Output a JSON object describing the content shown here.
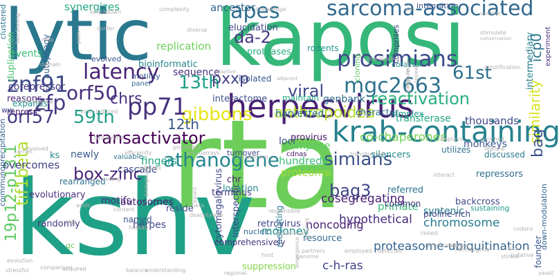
{
  "words": [
    {
      "text": "rta",
      "color": "#6cce59"
    },
    {
      "text": "kshv",
      "color": "#1fa187"
    },
    {
      "text": "kaposi",
      "color": "#35b779"
    },
    {
      "text": "lytic",
      "color": "#2a788e"
    },
    {
      "text": "herpesvirus",
      "color": "#482173"
    },
    {
      "text": "krab-containing",
      "color": "#26828e"
    },
    {
      "text": "anthropoidea",
      "color": "#b5de2b"
    },
    {
      "text": "prosimians",
      "color": "#3e4a89"
    },
    {
      "text": "sarcoma-associated",
      "color": "#31688e"
    },
    {
      "text": "gibbons",
      "color": "#e5e419"
    },
    {
      "text": "mgc2663",
      "color": "#2c728e"
    },
    {
      "text": "latency",
      "color": "#482475"
    },
    {
      "text": "pp71",
      "color": "#46337e"
    },
    {
      "text": "59th",
      "color": "#1f9e89"
    },
    {
      "text": "athanogene",
      "color": "#25858e"
    },
    {
      "text": "similarity",
      "color": "#d8e219"
    },
    {
      "text": "simians",
      "color": "#3b528b"
    },
    {
      "text": "13th",
      "color": "#1fa088"
    },
    {
      "text": "12th",
      "color": "#39568c"
    },
    {
      "text": "61st",
      "color": "#2d708e"
    },
    {
      "text": "zfp",
      "color": "#453882"
    },
    {
      "text": "orf57",
      "color": "#433e85"
    },
    {
      "text": "orf50",
      "color": "#472d7b"
    },
    {
      "text": "znf91",
      "color": "#3e4989"
    },
    {
      "text": "transactivator",
      "color": "#440154"
    },
    {
      "text": "box-zinc",
      "color": "#482677"
    },
    {
      "text": "bag3",
      "color": "#3f4788"
    },
    {
      "text": "reactivation",
      "color": "#29af7f"
    },
    {
      "text": "viral",
      "color": "#3f4889"
    },
    {
      "text": "apes",
      "color": "#2e6e8e"
    },
    {
      "text": "pxxp",
      "color": "#424086"
    },
    {
      "text": "da-2",
      "color": "#443983"
    },
    {
      "text": "chrs",
      "color": "#46307e"
    },
    {
      "text": "19p12-p13.1",
      "color": "#5ec962"
    },
    {
      "text": "tif1beta",
      "color": "#addc30"
    },
    {
      "text": "proteasome-ubiquitination",
      "color": "#33638d"
    },
    {
      "text": "cosegregating",
      "color": "#481d6f"
    },
    {
      "text": "hypothetical",
      "color": "#472a7a"
    },
    {
      "text": "chromosome",
      "color": "#287c8e"
    },
    {
      "text": "bag",
      "color": "#3b518b"
    },
    {
      "text": "icp0",
      "color": "#2a768e"
    },
    {
      "text": "primate",
      "color": "#35b779"
    },
    {
      "text": "intermediary",
      "color": "#277f8e"
    },
    {
      "text": "c-h-ras",
      "color": "#414487"
    },
    {
      "text": "moloney",
      "color": "#21908d"
    },
    {
      "text": "synergizes",
      "color": "#22a785"
    },
    {
      "text": "ancestor",
      "color": "#31678e"
    },
    {
      "text": "replication",
      "color": "#6ece58"
    },
    {
      "text": "sequence",
      "color": "#46327e"
    },
    {
      "text": "elucidation",
      "color": "#404688"
    },
    {
      "text": "proteases",
      "color": "#29af7f"
    },
    {
      "text": "duplication",
      "color": "#4ac16d"
    },
    {
      "text": "autophagy",
      "color": "#355f8d"
    },
    {
      "text": "isolated",
      "color": "#39558c"
    },
    {
      "text": "bioinformatic",
      "color": "#25848e"
    },
    {
      "text": "interactome",
      "color": "#3e4c8a"
    },
    {
      "text": "genbank",
      "color": "#2f6c8e"
    },
    {
      "text": "character",
      "color": "#2e6f8e"
    },
    {
      "text": "rodents",
      "color": "#1f968b"
    },
    {
      "text": "cloning",
      "color": "#5ec962"
    },
    {
      "text": "comprises",
      "color": "#443a83"
    },
    {
      "text": "cofactor",
      "color": "#21918c"
    },
    {
      "text": "simplex",
      "color": "#1e9b8a"
    },
    {
      "text": "transferase",
      "color": "#22a884"
    },
    {
      "text": "thousands",
      "color": "#3f4788"
    },
    {
      "text": "co-chaperones",
      "color": "#75d054"
    },
    {
      "text": "monkeys",
      "color": "#3b528b"
    },
    {
      "text": "provirus",
      "color": "#471164"
    },
    {
      "text": "loci",
      "color": "#3c4f8a"
    },
    {
      "text": "compose",
      "color": "#5cc863"
    },
    {
      "text": "hundreds",
      "color": "#3bbb75"
    },
    {
      "text": "proteome",
      "color": "#a2da37"
    },
    {
      "text": "silencers",
      "color": "#238a8d"
    },
    {
      "text": "utilizes",
      "color": "#2c718e"
    },
    {
      "text": "discussed",
      "color": "#297b8e"
    },
    {
      "text": "repressors",
      "color": "#2e6d8e"
    },
    {
      "text": "fingers",
      "color": "#22a785"
    },
    {
      "text": "cascade",
      "color": "#3d4d8a"
    },
    {
      "text": "newly",
      "color": "#38598c"
    },
    {
      "text": "ks",
      "color": "#23888e"
    },
    {
      "text": "overcomes",
      "color": "#424186"
    },
    {
      "text": "rearranged",
      "color": "#2e6e8e"
    },
    {
      "text": "evolutionary",
      "color": "#472f7d"
    },
    {
      "text": "motifs",
      "color": "#46307e"
    },
    {
      "text": "autosomes",
      "color": "#481f70"
    },
    {
      "text": "herpes",
      "color": "#404688"
    },
    {
      "text": "named",
      "color": "#3b528b"
    },
    {
      "text": "randomly",
      "color": "#453781"
    },
    {
      "text": "gc",
      "color": "#6ece58"
    },
    {
      "text": "coimmunoprecipitation",
      "color": "#355e8d"
    },
    {
      "text": "reside",
      "color": "#3d4e8a"
    },
    {
      "text": "chr",
      "color": "#482071"
    },
    {
      "text": "location",
      "color": "#23888e"
    },
    {
      "text": "terminus",
      "color": "#433d84"
    },
    {
      "text": "cytomegalovirus",
      "color": "#3f4788"
    },
    {
      "text": "interspecific",
      "color": "#3e4a89"
    },
    {
      "text": "comprehensively",
      "color": "#46337e"
    },
    {
      "text": "retrovirus",
      "color": "#404588"
    },
    {
      "text": "nucleic",
      "color": "#31668e"
    },
    {
      "text": "noncoding",
      "color": "#481f70"
    },
    {
      "text": "resource",
      "color": "#2f6b8e"
    },
    {
      "text": "referred",
      "color": "#2b748e"
    },
    {
      "text": "syntenic",
      "color": "#27808e"
    },
    {
      "text": "backcross",
      "color": "#3f4889"
    },
    {
      "text": "common",
      "color": "#463480"
    },
    {
      "text": "proline-rich",
      "color": "#414287"
    },
    {
      "text": "suppression",
      "color": "#84d44b"
    },
    {
      "text": "mediating",
      "color": "#297a8e"
    },
    {
      "text": "founder",
      "color": "#39568c"
    },
    {
      "text": "sustaining",
      "color": "#1f9a8a"
    },
    {
      "text": "down-modulation",
      "color": "#33628d"
    },
    {
      "text": "events",
      "color": "#3aba76"
    },
    {
      "text": "corepressor",
      "color": "#453882"
    },
    {
      "text": "reasons",
      "color": "#482576"
    },
    {
      "text": "repress",
      "color": "#481b6d"
    },
    {
      "text": "evolved",
      "color": "#3b528b"
    },
    {
      "text": "motility",
      "color": "#39558c"
    },
    {
      "text": "panel",
      "color": "#31688e"
    },
    {
      "text": "valuable",
      "color": "#2a778e"
    },
    {
      "text": "harvested",
      "color": "#2d708e"
    },
    {
      "text": "maintain",
      "color": "#22a785"
    },
    {
      "text": "cdnas",
      "color": "#481467"
    },
    {
      "text": "turnover",
      "color": "#3e4989"
    },
    {
      "text": "clustered",
      "color": "#2a768e"
    },
    {
      "text": "expands",
      "color": "#21918c"
    },
    {
      "text": "ww",
      "color": "#404688"
    },
    {
      "text": "integration",
      "color": "#3b528b"
    },
    {
      "text": "experiment",
      "color": "#472e7c"
    },
    {
      "text": "knockdown",
      "color": "#b0b0b0"
    },
    {
      "text": "complexity",
      "color": "#b0b0b0"
    },
    {
      "text": "knowledge",
      "color": "#b0b0b0"
    },
    {
      "text": "diverse",
      "color": "#b0b0b0"
    },
    {
      "text": "confer",
      "color": "#b0b0b0"
    },
    {
      "text": "functioning",
      "color": "#b0b0b0"
    },
    {
      "text": "map",
      "color": "#b0b0b0"
    },
    {
      "text": "pairs",
      "color": "#b0b0b0"
    },
    {
      "text": "unclear",
      "color": "#b0b0b0"
    },
    {
      "text": "stimulate",
      "color": "#b0b0b0"
    },
    {
      "text": "conservation",
      "color": "#b0b0b0"
    },
    {
      "text": "amplification",
      "color": "#b0b0b0"
    },
    {
      "text": "dna-binding",
      "color": "#b0b0b0"
    },
    {
      "text": "adjacent",
      "color": "#b0b0b0"
    },
    {
      "text": "adaptive",
      "color": "#b0b0b0"
    },
    {
      "text": "repeat",
      "color": "#b0b0b0"
    },
    {
      "text": "high-level",
      "color": "#b0b0b0"
    },
    {
      "text": "pressure",
      "color": "#b0b0b0"
    },
    {
      "text": "domain",
      "color": "#b0b0b0"
    },
    {
      "text": "interference",
      "color": "#b0b0b0"
    },
    {
      "text": "virus-induced",
      "color": "#b0b0b0"
    },
    {
      "text": "two-hybrid",
      "color": "#b0b0b0"
    },
    {
      "text": "relevant",
      "color": "#b0b0b0"
    },
    {
      "text": "efficiently",
      "color": "#b0b0b0"
    },
    {
      "text": "promoters",
      "color": "#b0b0b0"
    },
    {
      "text": "microarrays",
      "color": "#b0b0b0"
    },
    {
      "text": "n-terminal",
      "color": "#b0b0b0"
    },
    {
      "text": "transformed",
      "color": "#b0b0b0"
    },
    {
      "text": "displays",
      "color": "#b0b0b0"
    },
    {
      "text": "enriched",
      "color": "#b0b0b0"
    },
    {
      "text": "feature",
      "color": "#b0b0b0"
    },
    {
      "text": "interact",
      "color": "#b0b0b0"
    },
    {
      "text": "carries",
      "color": "#b0b0b0"
    },
    {
      "text": "involved",
      "color": "#b0b0b0"
    },
    {
      "text": "coding",
      "color": "#b0b0b0"
    },
    {
      "text": "biologically",
      "color": "#b0b0b0"
    },
    {
      "text": "exons",
      "color": "#b0b0b0"
    },
    {
      "text": "1beta",
      "color": "#b0b0b0"
    },
    {
      "text": "deacetylase",
      "color": "#b0b0b0"
    },
    {
      "text": "mutational",
      "color": "#b0b0b0"
    },
    {
      "text": "responsible",
      "color": "#b0b0b0"
    },
    {
      "text": "acids",
      "color": "#b0b0b0"
    },
    {
      "text": "content",
      "color": "#b0b0b0"
    },
    {
      "text": "play",
      "color": "#b0b0b0"
    },
    {
      "text": "human",
      "color": "#b0b0b0"
    },
    {
      "text": "genome",
      "color": "#b0b0b0"
    },
    {
      "text": "partners",
      "color": "#b0b0b0"
    },
    {
      "text": "employed",
      "color": "#b0b0b0"
    },
    {
      "text": "detected",
      "color": "#b0b0b0"
    },
    {
      "text": "recombination",
      "color": "#b0b0b0"
    },
    {
      "text": "pivotal",
      "color": "#b0b0b0"
    },
    {
      "text": "p21",
      "color": "#b0b0b0"
    },
    {
      "text": "emergence",
      "color": "#b0b0b0"
    },
    {
      "text": "proteins",
      "color": "#b0b0b0"
    },
    {
      "text": "homologous",
      "color": "#b0b0b0"
    },
    {
      "text": "stimuli",
      "color": "#b0b0b0"
    },
    {
      "text": "putative",
      "color": "#b0b0b0"
    },
    {
      "text": "evolution",
      "color": "#b0b0b0"
    },
    {
      "text": "comparison",
      "color": "#b0b0b0"
    },
    {
      "text": "acquired",
      "color": "#b0b0b0"
    },
    {
      "text": "stressful",
      "color": "#b0b0b0"
    },
    {
      "text": "balance",
      "color": "#b0b0b0"
    },
    {
      "text": "understanding",
      "color": "#b0b0b0"
    },
    {
      "text": "regional",
      "color": "#b0b0b0"
    },
    {
      "text": "yeast",
      "color": "#b0b0b0"
    },
    {
      "text": "host",
      "color": "#b0b0b0"
    },
    {
      "text": "aa",
      "color": "#b0b0b0"
    },
    {
      "text": "raised",
      "color": "#b0b0b0"
    },
    {
      "text": "codons",
      "color": "#b0b0b0"
    },
    {
      "text": "cellular",
      "color": "#b0b0b0"
    }
  ]
}
